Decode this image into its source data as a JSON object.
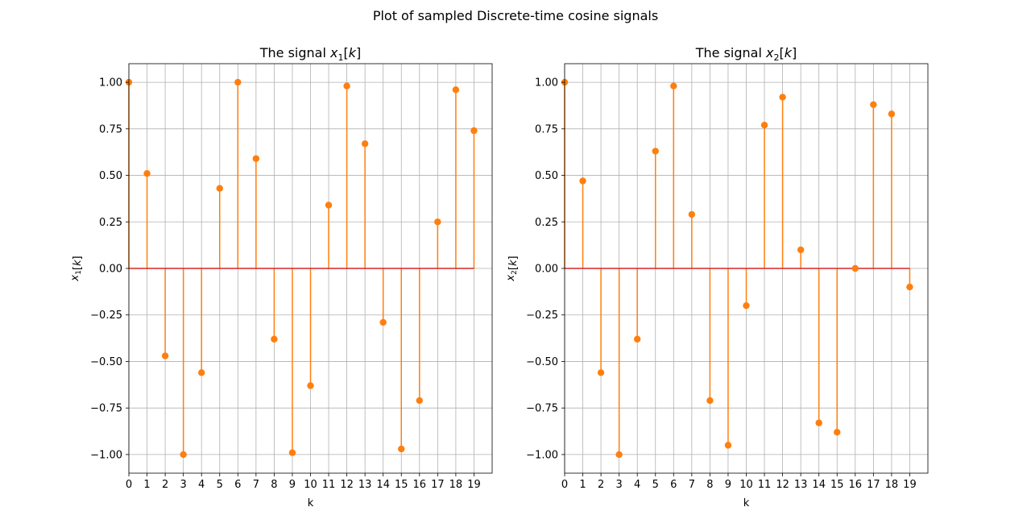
{
  "figure": {
    "suptitle": "Plot of sampled Discrete-time cosine signals"
  },
  "colors": {
    "stem": "#ff7f0e",
    "baseline": "#d62728",
    "grid": "#b0b0b0",
    "axes": "#000000"
  },
  "chart_data": [
    {
      "type": "stem",
      "title_prefix": "The signal ",
      "title_var": "x",
      "title_sub": "1",
      "title_arg": "[k]",
      "xlabel": "k",
      "ylabel_var": "x",
      "ylabel_sub": "1",
      "ylabel_arg": "[k]",
      "x": [
        0,
        1,
        2,
        3,
        4,
        5,
        6,
        7,
        8,
        9,
        10,
        11,
        12,
        13,
        14,
        15,
        16,
        17,
        18,
        19
      ],
      "values": [
        1.0,
        0.51,
        -0.47,
        -1.0,
        -0.56,
        0.43,
        1.0,
        0.59,
        -0.38,
        -0.99,
        -0.63,
        0.34,
        0.98,
        0.67,
        -0.29,
        -0.97,
        -0.71,
        0.25,
        0.96,
        0.74
      ],
      "xlim": [
        0,
        20
      ],
      "ylim": [
        -1.1,
        1.1
      ],
      "xticks": [
        0,
        1,
        2,
        3,
        4,
        5,
        6,
        7,
        8,
        9,
        10,
        11,
        12,
        13,
        14,
        15,
        16,
        17,
        18,
        19
      ],
      "yticks": [
        -1.0,
        -0.75,
        -0.5,
        -0.25,
        0.0,
        0.25,
        0.5,
        0.75,
        1.0
      ],
      "ytick_labels": [
        "−1.00",
        "−0.75",
        "−0.50",
        "−0.25",
        "0.00",
        "0.25",
        "0.50",
        "0.75",
        "1.00"
      ],
      "grid": true
    },
    {
      "type": "stem",
      "title_prefix": "The signal ",
      "title_var": "x",
      "title_sub": "2",
      "title_arg": "[k]",
      "xlabel": "k",
      "ylabel_var": "x",
      "ylabel_sub": "2",
      "ylabel_arg": "[k]",
      "x": [
        0,
        1,
        2,
        3,
        4,
        5,
        6,
        7,
        8,
        9,
        10,
        11,
        12,
        13,
        14,
        15,
        16,
        17,
        18,
        19
      ],
      "values": [
        1.0,
        0.47,
        -0.56,
        -1.0,
        -0.38,
        0.63,
        0.98,
        0.29,
        -0.71,
        -0.95,
        -0.2,
        0.77,
        0.92,
        0.1,
        -0.83,
        -0.88,
        0.0,
        0.88,
        0.83,
        -0.1
      ],
      "xlim": [
        0,
        20
      ],
      "ylim": [
        -1.1,
        1.1
      ],
      "xticks": [
        0,
        1,
        2,
        3,
        4,
        5,
        6,
        7,
        8,
        9,
        10,
        11,
        12,
        13,
        14,
        15,
        16,
        17,
        18,
        19
      ],
      "yticks": [
        -1.0,
        -0.75,
        -0.5,
        -0.25,
        0.0,
        0.25,
        0.5,
        0.75,
        1.0
      ],
      "ytick_labels": [
        "−1.00",
        "−0.75",
        "−0.50",
        "−0.25",
        "0.00",
        "0.25",
        "0.50",
        "0.75",
        "1.00"
      ],
      "grid": true
    }
  ]
}
